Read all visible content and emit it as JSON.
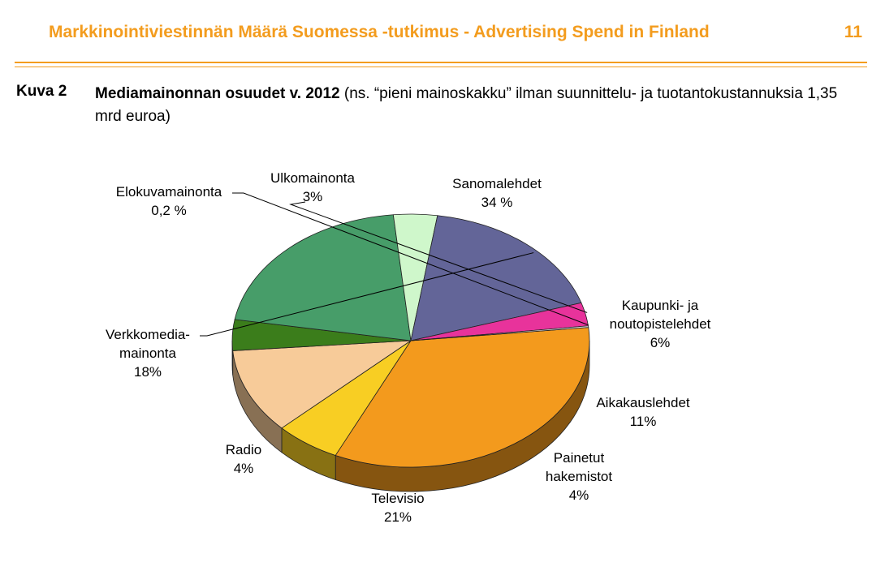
{
  "header": {
    "title": "Markkinointiviestinnän Määrä Suomessa -tutkimus - Advertising Spend in Finland",
    "page_number": "11"
  },
  "caption": {
    "label": "Kuva 2",
    "title_bold": "Mediamainonnan osuudet v. 2012",
    "title_rest": "(ns. “pieni mainoskakku” ilman suunnittelu- ja tuotantokustannuksia 1,35 mrd euroa)"
  },
  "colors": {
    "accent": "#f39c1e"
  },
  "chart_data": {
    "type": "pie",
    "title": "",
    "slices": [
      {
        "label": "Sanomalehdet",
        "value": 34,
        "value_label": "34 %",
        "color": "#f39a1d"
      },
      {
        "label": "Kaupunki- ja noutopistelehdet",
        "value": 6,
        "value_label": "6%",
        "color": "#f8ce23"
      },
      {
        "label": "Aikakauslehdet",
        "value": 11,
        "value_label": "11%",
        "color": "#f7cb99"
      },
      {
        "label": "Painetut hakemistot",
        "value": 4,
        "value_label": "4%",
        "color": "#3b7d1b"
      },
      {
        "label": "Televisio",
        "value": 21,
        "value_label": "21%",
        "color": "#479d69"
      },
      {
        "label": "Radio",
        "value": 4,
        "value_label": "4%",
        "color": "#cff7cb"
      },
      {
        "label": "Verkkomedia-mainonta",
        "value": 18,
        "value_label": "18%",
        "color": "#636598"
      },
      {
        "label": "Ulkomainonta",
        "value": 3,
        "value_label": "3%",
        "color": "#e8339b"
      },
      {
        "label": "Elokuvamainonta",
        "value": 0.2,
        "value_label": "0,2 %",
        "color": "#e6e6e6"
      }
    ],
    "legend": "none",
    "style": "3d"
  }
}
